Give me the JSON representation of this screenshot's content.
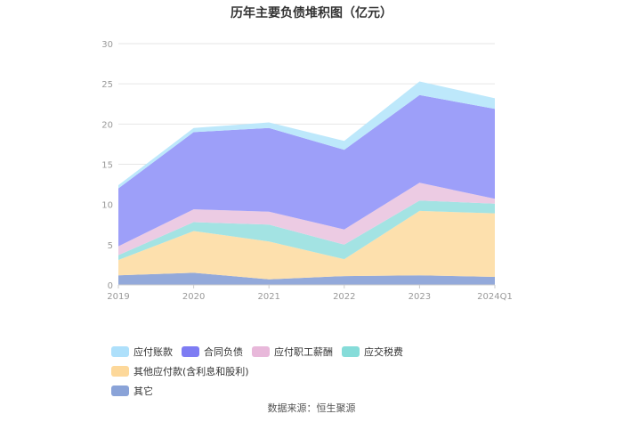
{
  "chart_data": {
    "type": "area",
    "title": "历年主要负债堆积图（亿元）",
    "stacked": true,
    "categories": [
      "2019",
      "2020",
      "2021",
      "2022",
      "2023",
      "2024Q1"
    ],
    "ylim": [
      0,
      30
    ],
    "yticks": [
      0,
      5,
      10,
      15,
      20,
      25,
      30
    ],
    "grid": true,
    "legend_position": "bottom",
    "series": [
      {
        "name": "其它",
        "color": "#93a9da",
        "values": [
          1.2,
          1.5,
          0.7,
          1.1,
          1.2,
          1.0
        ]
      },
      {
        "name": "其他应付款(含利息和股利)",
        "color": "#fde0ad",
        "values": [
          1.9,
          5.2,
          4.7,
          2.1,
          8.0,
          7.9
        ]
      },
      {
        "name": "应交税费",
        "color": "#a3e3e3",
        "values": [
          0.6,
          1.1,
          2.1,
          1.8,
          1.3,
          1.2
        ]
      },
      {
        "name": "应付职工薪酬",
        "color": "#eccbe3",
        "values": [
          1.1,
          1.6,
          1.6,
          1.9,
          2.2,
          0.6
        ]
      },
      {
        "name": "合同负债",
        "color": "#9d9ff9",
        "values": [
          7.2,
          9.6,
          10.4,
          9.9,
          10.9,
          11.2
        ]
      },
      {
        "name": "应付账款",
        "color": "#bde8fb",
        "values": [
          0.4,
          0.5,
          0.7,
          1.1,
          1.7,
          1.3
        ]
      }
    ]
  },
  "legend": {
    "row1": [
      {
        "label": "应付账款",
        "color": "#aee0fb"
      },
      {
        "label": "合同负债",
        "color": "#7e7cf3"
      },
      {
        "label": "应付职工薪酬",
        "color": "#e8b8da"
      },
      {
        "label": "应交税费",
        "color": "#86dcd9"
      },
      {
        "label": "其他应付款(含利息和股利)",
        "color": "#fdd89a"
      }
    ],
    "row2": [
      {
        "label": "其它",
        "color": "#8aa3d8"
      }
    ]
  },
  "source": "数据来源：恒生聚源"
}
